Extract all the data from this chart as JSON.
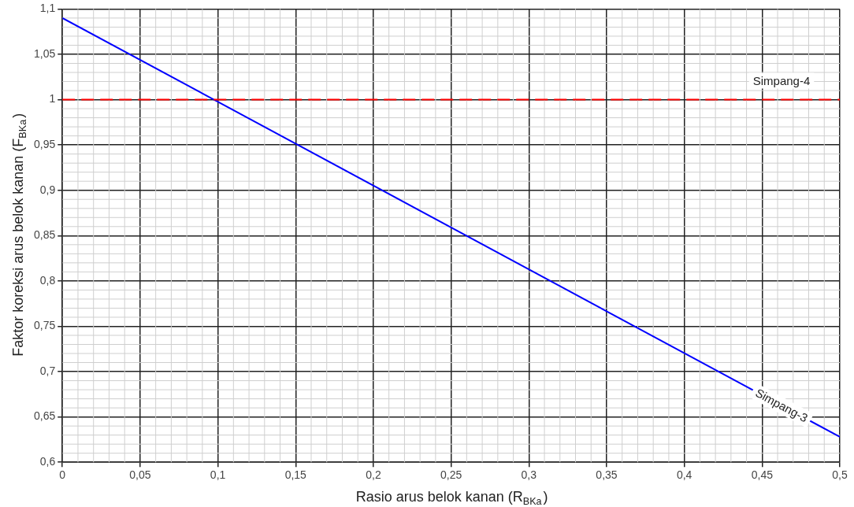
{
  "chart_data": {
    "type": "line",
    "xlabel": "Rasio arus belok kanan (R$_{BKa}$)",
    "ylabel": "Faktor koreksi arus belok kanan (F$_{BKa}$)",
    "xlim": [
      0,
      0.5
    ],
    "ylim": [
      0.6,
      1.1
    ],
    "xticks": [
      0,
      {
        "value": 0.05,
        "label": "0,05"
      },
      {
        "value": 0.1,
        "label": "0,1"
      },
      {
        "value": 0.15,
        "label": "0,15"
      },
      {
        "value": 0.2,
        "label": "0,2"
      },
      {
        "value": 0.25,
        "label": "0,25"
      },
      {
        "value": 0.3,
        "label": "0,3"
      },
      {
        "value": 0.35,
        "label": "0,35"
      },
      {
        "value": 0.4,
        "label": "0,4"
      },
      {
        "value": 0.45,
        "label": "0,45"
      },
      {
        "value": 0.5,
        "label": "0,5"
      }
    ],
    "yticks": [
      {
        "value": 0.6,
        "label": "0,6"
      },
      {
        "value": 0.65,
        "label": "0,65"
      },
      {
        "value": 0.7,
        "label": "0,7"
      },
      {
        "value": 0.75,
        "label": "0,75"
      },
      {
        "value": 0.8,
        "label": "0,8"
      },
      {
        "value": 0.85,
        "label": "0,85"
      },
      {
        "value": 0.9,
        "label": "0,9"
      },
      {
        "value": 0.95,
        "label": "0,95"
      },
      1,
      {
        "value": 1.05,
        "label": "1,05"
      },
      {
        "value": 1.1,
        "label": "1,1"
      }
    ],
    "grid": true,
    "legend": false,
    "marker": "none",
    "ref_lines": [
      {
        "axis": "y",
        "value": 1,
        "label": "Simpang-4",
        "color": "#ff0000",
        "line_style": "dashed"
      }
    ],
    "series": [
      {
        "name": "Simpang-3",
        "color": "#0000ff",
        "x": [
          0,
          0.5
        ],
        "values": [
          1.09,
          0.628
        ],
        "line_style": "solid"
      }
    ]
  }
}
